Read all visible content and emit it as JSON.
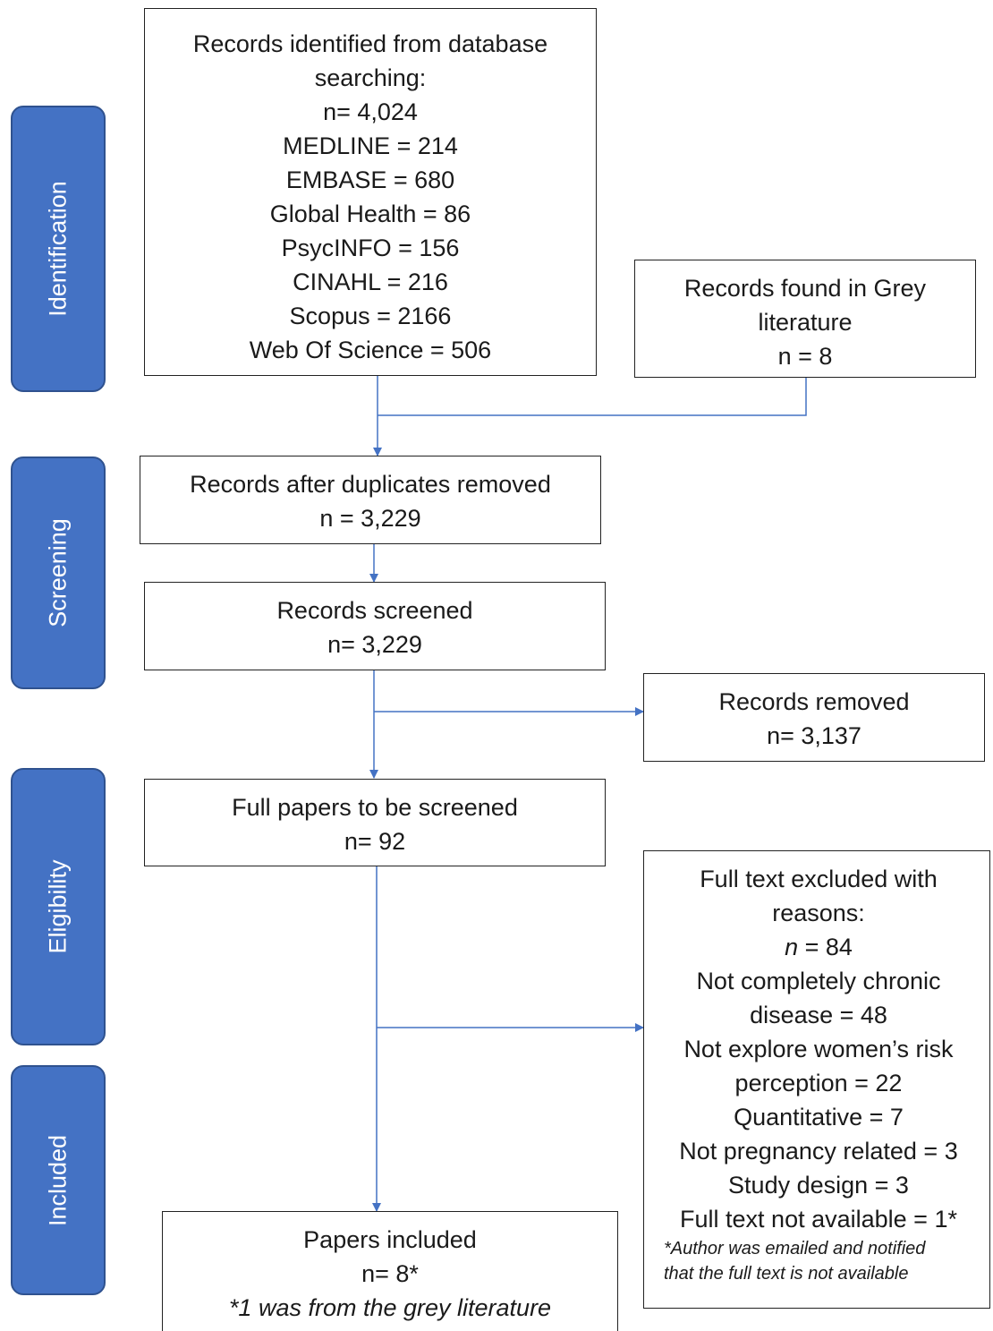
{
  "colors": {
    "stage_fill": "#4472c4",
    "stage_border": "#2f528f",
    "arrow": "#4472c4",
    "box_border": "#222222"
  },
  "stages": {
    "identification": "Identification",
    "screening": "Screening",
    "eligibility": "Eligibility",
    "included": "Included"
  },
  "boxes": {
    "database": {
      "title": "Records identified from database",
      "title2": "searching:",
      "total": "n= 4,024",
      "sources": [
        "MEDLINE = 214",
        "EMBASE = 680",
        "Global Health = 86",
        "PsycINFO = 156",
        "CINAHL = 216",
        "Scopus = 2166",
        "Web Of Science = 506"
      ]
    },
    "grey": {
      "title": "Records found in Grey",
      "title2": "literature",
      "count": "n = 8"
    },
    "duplicates": {
      "title": "Records after duplicates removed",
      "count": "n = 3,229"
    },
    "screened": {
      "title": "Records screened",
      "count": "n= 3,229"
    },
    "removed": {
      "title": "Records removed",
      "count": "n= 3,137"
    },
    "full_papers": {
      "title": "Full papers to be screened",
      "count": "n= 92"
    },
    "excluded": {
      "title": "Full text excluded with",
      "title2": "reasons:",
      "n_symbol": "n",
      "n_value": " = 84",
      "reasons": [
        "Not completely chronic",
        "disease = 48",
        "Not explore women’s risk",
        "perception = 22",
        "Quantitative = 7",
        "Not pregnancy related = 3",
        "Study design = 3",
        "Full text not available = 1*"
      ],
      "note1": "*Author was emailed and notified",
      "note2": "that the full text is not available"
    },
    "included": {
      "title": "Papers included",
      "count": "n= 8*",
      "note": "*1 was from the grey literature"
    }
  }
}
